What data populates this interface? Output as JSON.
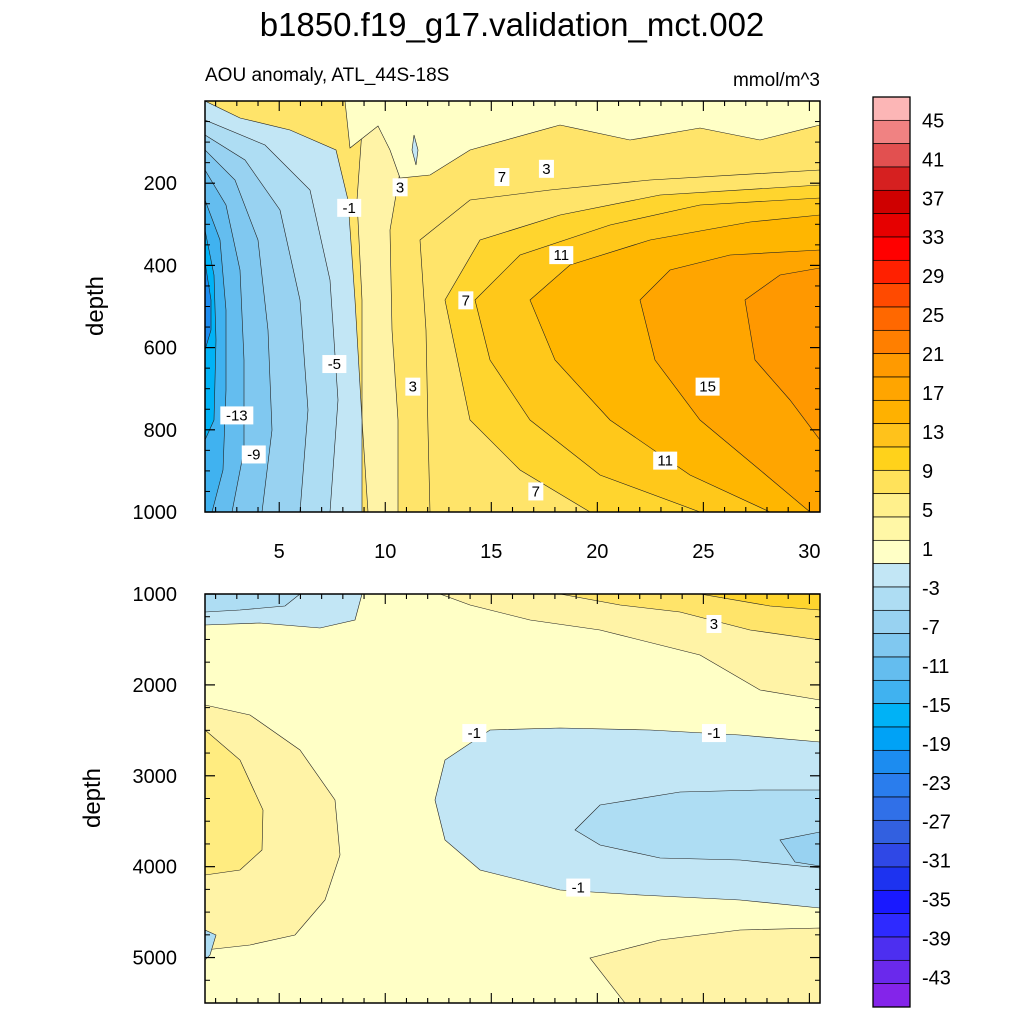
{
  "chart_data": {
    "type": "contour",
    "title": "b1850.f19_g17.validation_mct.002",
    "subtitle": "AOU anomaly, ATL_44S-18S",
    "units": "mmol/m^3",
    "ylabel": "depth",
    "xlim": [
      1.5,
      30.5
    ],
    "x_ticks": [
      5,
      10,
      15,
      20,
      25,
      30
    ],
    "panels": [
      {
        "name": "upper",
        "ylim": [
          0,
          1000
        ],
        "y_ticks": [
          200,
          400,
          600,
          800,
          1000
        ],
        "contour_labels": [
          {
            "text": "-1",
            "x": 8.3,
            "depth": 260
          },
          {
            "text": "3",
            "x": 10.7,
            "depth": 210
          },
          {
            "text": "7",
            "x": 15.5,
            "depth": 185
          },
          {
            "text": "3",
            "x": 17.6,
            "depth": 165
          },
          {
            "text": "11",
            "x": 18.3,
            "depth": 375
          },
          {
            "text": "7",
            "x": 13.8,
            "depth": 485
          },
          {
            "text": "-5",
            "x": 7.6,
            "depth": 640
          },
          {
            "text": "3",
            "x": 11.3,
            "depth": 695
          },
          {
            "text": "15",
            "x": 25.2,
            "depth": 695
          },
          {
            "text": "-13",
            "x": 3.0,
            "depth": 765
          },
          {
            "text": "-9",
            "x": 3.8,
            "depth": 860
          },
          {
            "text": "11",
            "x": 23.2,
            "depth": 875
          },
          {
            "text": "7",
            "x": 17.1,
            "depth": 950
          }
        ]
      },
      {
        "name": "lower",
        "ylim": [
          1000,
          5500
        ],
        "y_ticks": [
          1000,
          2000,
          3000,
          4000,
          5000
        ],
        "contour_labels": [
          {
            "text": "3",
            "x": 25.5,
            "depth": 1330
          },
          {
            "text": "-1",
            "x": 14.2,
            "depth": 2530
          },
          {
            "text": "-1",
            "x": 25.5,
            "depth": 2530
          },
          {
            "text": "-1",
            "x": 19.1,
            "depth": 4230
          }
        ]
      }
    ],
    "colorbar": {
      "labels": [
        "45",
        "41",
        "37",
        "33",
        "29",
        "25",
        "21",
        "17",
        "13",
        "9",
        "5",
        "1",
        "-3",
        "-7",
        "-11",
        "-15",
        "-19",
        "-23",
        "-27",
        "-31",
        "-35",
        "-39",
        "-43"
      ],
      "colors": [
        "#fcb6b6",
        "#f08282",
        "#e25050",
        "#d62020",
        "#cf0000",
        "#e60000",
        "#ff0000",
        "#ff2000",
        "#ff4a00",
        "#ff6800",
        "#ff7f00",
        "#ff9a00",
        "#ffa500",
        "#ffb100",
        "#ffc21b",
        "#ffd21b",
        "#ffe25a",
        "#fff08c",
        "#fff7a6",
        "#ffffc6",
        "#c2e6f5",
        "#aeddf3",
        "#98d2f1",
        "#80c8f0",
        "#64bdef",
        "#40b2f0",
        "#00b2f6",
        "#00a2f6",
        "#1c8cf0",
        "#2a7ded",
        "#3070e8",
        "#3260e0",
        "#2f48e6",
        "#1d33f0",
        "#1919ff",
        "#2e2aff",
        "#4d2ff0",
        "#6a29ec",
        "#8424ea"
      ]
    }
  }
}
